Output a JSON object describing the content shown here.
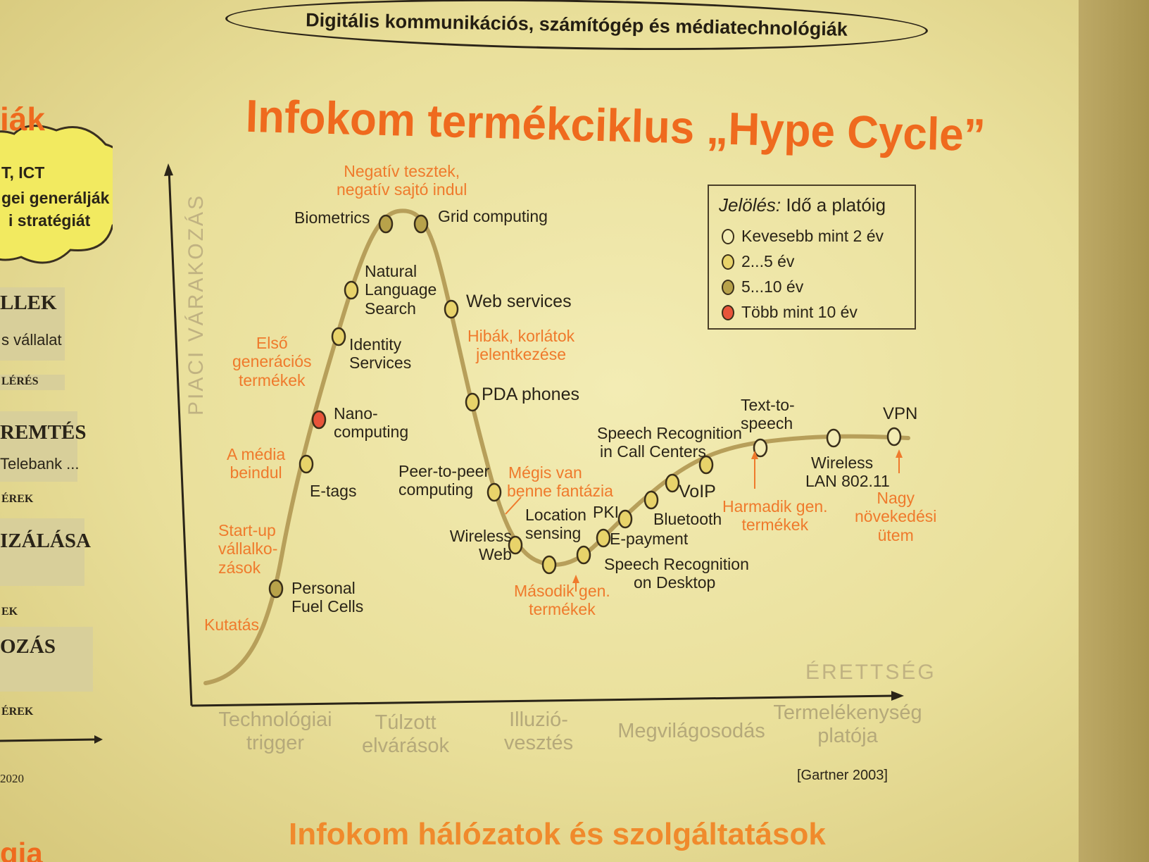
{
  "header": {
    "banner": "Digitális kommunikációs, számítógép és médiatechnológiák"
  },
  "title": "Infokom termékciklus „Hype Cycle”",
  "footer_title": "Infokom hálózatok és szolgáltatások",
  "source": "[Gartner 2003]",
  "axes": {
    "y_label": "PIACI VÁRAKOZÁS",
    "x_label": "ÉRETTSÉG"
  },
  "phases": [
    [
      "Technológiai",
      "trigger"
    ],
    [
      "Túlzott",
      "elvárások"
    ],
    [
      "Illuzió-",
      "vesztés"
    ],
    [
      "Megvilágosodás"
    ],
    [
      "Termelékenység",
      "platója"
    ]
  ],
  "legend": {
    "title_italic": "Jelölés:",
    "title_rest": " Idő a platóig",
    "items": [
      {
        "label": "Kevesebb mint 2 év",
        "color": "#f3ecb4"
      },
      {
        "label": "2...5 év",
        "color": "#e8d36a"
      },
      {
        "label": "5...10 év",
        "color": "#b8a24a"
      },
      {
        "label": "Több mint 10 év",
        "color": "#e8543a"
      }
    ]
  },
  "technologies": [
    {
      "lines": [
        "Personal",
        "Fuel Cells"
      ],
      "color": "#b8a24a"
    },
    {
      "lines": [
        "E-tags"
      ],
      "color": "#e8d36a"
    },
    {
      "lines": [
        "Nano-",
        "computing"
      ],
      "color": "#e8543a"
    },
    {
      "lines": [
        "Identity",
        "Services"
      ],
      "color": "#e8d36a"
    },
    {
      "lines": [
        "Natural",
        "Language",
        "Search"
      ],
      "color": "#e8d36a"
    },
    {
      "lines": [
        "Biometrics"
      ],
      "color": "#b8a24a"
    },
    {
      "lines": [
        "Grid computing"
      ],
      "color": "#b8a24a"
    },
    {
      "lines": [
        "Web services"
      ],
      "color": "#e8d36a"
    },
    {
      "lines": [
        "PDA phones"
      ],
      "color": "#e8d36a"
    },
    {
      "lines": [
        "Peer-to-peer",
        "computing"
      ],
      "color": "#e8d36a"
    },
    {
      "lines": [
        "Wireless",
        "Web"
      ],
      "color": "#e8d36a"
    },
    {
      "lines": [
        "Location",
        "sensing"
      ],
      "color": "#e8d36a"
    },
    {
      "lines": [
        "Speech Recognition",
        "on Desktop"
      ],
      "color": "#e8d36a"
    },
    {
      "lines": [
        "E-payment"
      ],
      "color": "#e8d36a"
    },
    {
      "lines": [
        "PKI"
      ],
      "color": "#e8d36a"
    },
    {
      "lines": [
        "Bluetooth"
      ],
      "color": "#e8d36a"
    },
    {
      "lines": [
        "VoIP"
      ],
      "color": "#e8d36a"
    },
    {
      "lines": [
        "Speech Recognition",
        "in Call Centers"
      ],
      "color": "#e8d36a"
    },
    {
      "lines": [
        "Text-to-",
        "speech"
      ],
      "color": "#f3ecb4"
    },
    {
      "lines": [
        "Wireless",
        "LAN 802.11"
      ],
      "color": "#f3ecb4"
    },
    {
      "lines": [
        "VPN"
      ],
      "color": "#f3ecb4"
    }
  ],
  "annotations": [
    [
      "Kutatás"
    ],
    [
      "Start-up",
      "vállalko-",
      "zások"
    ],
    [
      "A média",
      "beindul"
    ],
    [
      "Első",
      "generációs",
      "termékek"
    ],
    [
      "Negatív tesztek,",
      "negatív sajtó indul"
    ],
    [
      "Hibák, korlátok",
      "jelentkezése"
    ],
    [
      "Mégis van",
      "benne fantázia"
    ],
    [
      "Második gen.",
      "termékek"
    ],
    [
      "Harmadik gen.",
      "termékek"
    ],
    [
      "Nagy",
      "növekedési",
      "ütem"
    ]
  ],
  "left_strip": {
    "cloud_title": "iák",
    "cloud_lines": [
      "T, ICT",
      "gei generálják",
      "i stratégiát"
    ],
    "rows": [
      {
        "head": "LLEK",
        "sub": "s vállalat",
        "tag": "LÉRÉS"
      },
      {
        "head": "REMTÉS",
        "sub": "Telebank ...",
        "tag": "ÉREK"
      },
      {
        "head": "IZÁLÁSA",
        "sub": "",
        "tag": "EK"
      },
      {
        "head": "OZÁS",
        "sub": "",
        "tag": "ÉREK"
      }
    ],
    "year": "2020",
    "bottom_word": "gia"
  }
}
